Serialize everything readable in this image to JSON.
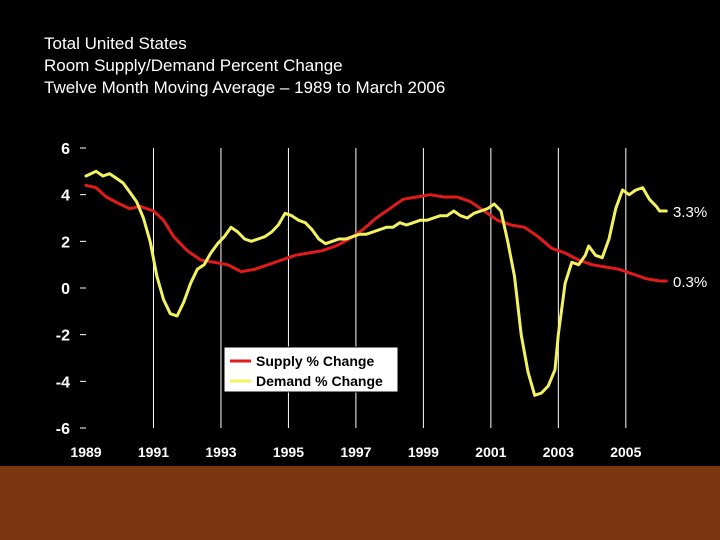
{
  "title_lines": [
    "Total United States",
    "Room Supply/Demand Percent Change",
    "Twelve Month Moving Average – 1989 to March 2006"
  ],
  "chart_data": {
    "type": "line",
    "x_range": [
      1989,
      2006.25
    ],
    "ylim": [
      -6,
      6
    ],
    "yticks": [
      6,
      4,
      2,
      0,
      -2,
      -4,
      -6
    ],
    "xtick_labels": [
      "1989",
      "1991",
      "1993",
      "1995",
      "1997",
      "1999",
      "2001",
      "2003",
      "2005"
    ],
    "xtick_values": [
      1989,
      1991,
      1993,
      1995,
      1997,
      1999,
      2001,
      2003,
      2005
    ],
    "legend": [
      "Supply % Change",
      "Demand % Change"
    ],
    "series": [
      {
        "name": "Supply % Change",
        "color": "#e11b1b",
        "end_label": "0.3%",
        "points": [
          [
            1989.0,
            4.4
          ],
          [
            1989.3,
            4.3
          ],
          [
            1989.6,
            3.9
          ],
          [
            1990.0,
            3.6
          ],
          [
            1990.3,
            3.4
          ],
          [
            1990.6,
            3.5
          ],
          [
            1991.0,
            3.3
          ],
          [
            1991.3,
            2.9
          ],
          [
            1991.6,
            2.2
          ],
          [
            1992.0,
            1.6
          ],
          [
            1992.4,
            1.2
          ],
          [
            1992.8,
            1.1
          ],
          [
            1993.2,
            1.0
          ],
          [
            1993.6,
            0.7
          ],
          [
            1994.0,
            0.8
          ],
          [
            1994.4,
            1.0
          ],
          [
            1994.8,
            1.2
          ],
          [
            1995.2,
            1.4
          ],
          [
            1995.6,
            1.5
          ],
          [
            1996.0,
            1.6
          ],
          [
            1996.4,
            1.8
          ],
          [
            1996.8,
            2.1
          ],
          [
            1997.2,
            2.5
          ],
          [
            1997.6,
            3.0
          ],
          [
            1998.0,
            3.4
          ],
          [
            1998.4,
            3.8
          ],
          [
            1998.8,
            3.9
          ],
          [
            1999.2,
            4.0
          ],
          [
            1999.6,
            3.9
          ],
          [
            2000.0,
            3.9
          ],
          [
            2000.4,
            3.7
          ],
          [
            2000.8,
            3.3
          ],
          [
            2001.2,
            2.9
          ],
          [
            2001.6,
            2.7
          ],
          [
            2002.0,
            2.6
          ],
          [
            2002.4,
            2.2
          ],
          [
            2002.8,
            1.7
          ],
          [
            2003.2,
            1.5
          ],
          [
            2003.6,
            1.2
          ],
          [
            2004.0,
            1.0
          ],
          [
            2004.4,
            0.9
          ],
          [
            2004.8,
            0.8
          ],
          [
            2005.2,
            0.6
          ],
          [
            2005.6,
            0.4
          ],
          [
            2006.0,
            0.3
          ],
          [
            2006.2,
            0.3
          ]
        ]
      },
      {
        "name": "Demand % Change",
        "color": "#f3f360",
        "end_label": "3.3%",
        "points": [
          [
            1989.0,
            4.8
          ],
          [
            1989.3,
            5.0
          ],
          [
            1989.5,
            4.8
          ],
          [
            1989.7,
            4.9
          ],
          [
            1989.9,
            4.7
          ],
          [
            1990.1,
            4.5
          ],
          [
            1990.3,
            4.1
          ],
          [
            1990.5,
            3.7
          ],
          [
            1990.7,
            3.0
          ],
          [
            1990.9,
            2.0
          ],
          [
            1991.1,
            0.5
          ],
          [
            1991.3,
            -0.5
          ],
          [
            1991.5,
            -1.1
          ],
          [
            1991.7,
            -1.2
          ],
          [
            1991.9,
            -0.6
          ],
          [
            1992.1,
            0.2
          ],
          [
            1992.3,
            0.8
          ],
          [
            1992.5,
            1.0
          ],
          [
            1992.7,
            1.5
          ],
          [
            1992.9,
            1.9
          ],
          [
            1993.1,
            2.2
          ],
          [
            1993.3,
            2.6
          ],
          [
            1993.5,
            2.4
          ],
          [
            1993.7,
            2.1
          ],
          [
            1993.9,
            2.0
          ],
          [
            1994.1,
            2.1
          ],
          [
            1994.3,
            2.2
          ],
          [
            1994.5,
            2.4
          ],
          [
            1994.7,
            2.7
          ],
          [
            1994.9,
            3.2
          ],
          [
            1995.1,
            3.1
          ],
          [
            1995.3,
            2.9
          ],
          [
            1995.5,
            2.8
          ],
          [
            1995.7,
            2.5
          ],
          [
            1995.9,
            2.1
          ],
          [
            1996.1,
            1.9
          ],
          [
            1996.3,
            2.0
          ],
          [
            1996.5,
            2.1
          ],
          [
            1996.7,
            2.1
          ],
          [
            1996.9,
            2.2
          ],
          [
            1997.1,
            2.3
          ],
          [
            1997.3,
            2.3
          ],
          [
            1997.5,
            2.4
          ],
          [
            1997.7,
            2.5
          ],
          [
            1997.9,
            2.6
          ],
          [
            1998.1,
            2.6
          ],
          [
            1998.3,
            2.8
          ],
          [
            1998.5,
            2.7
          ],
          [
            1998.7,
            2.8
          ],
          [
            1998.9,
            2.9
          ],
          [
            1999.1,
            2.9
          ],
          [
            1999.3,
            3.0
          ],
          [
            1999.5,
            3.1
          ],
          [
            1999.7,
            3.1
          ],
          [
            1999.9,
            3.3
          ],
          [
            2000.1,
            3.1
          ],
          [
            2000.3,
            3.0
          ],
          [
            2000.5,
            3.2
          ],
          [
            2000.7,
            3.3
          ],
          [
            2000.9,
            3.4
          ],
          [
            2001.1,
            3.6
          ],
          [
            2001.3,
            3.3
          ],
          [
            2001.5,
            2.0
          ],
          [
            2001.7,
            0.5
          ],
          [
            2001.9,
            -2.0
          ],
          [
            2002.1,
            -3.6
          ],
          [
            2002.3,
            -4.6
          ],
          [
            2002.5,
            -4.5
          ],
          [
            2002.7,
            -4.2
          ],
          [
            2002.9,
            -3.5
          ],
          [
            2003.0,
            -2.0
          ],
          [
            2003.2,
            0.2
          ],
          [
            2003.4,
            1.1
          ],
          [
            2003.6,
            1.0
          ],
          [
            2003.8,
            1.4
          ],
          [
            2003.9,
            1.8
          ],
          [
            2004.1,
            1.4
          ],
          [
            2004.3,
            1.3
          ],
          [
            2004.5,
            2.1
          ],
          [
            2004.7,
            3.4
          ],
          [
            2004.9,
            4.2
          ],
          [
            2005.1,
            4.0
          ],
          [
            2005.3,
            4.2
          ],
          [
            2005.5,
            4.3
          ],
          [
            2005.7,
            3.8
          ],
          [
            2005.9,
            3.5
          ],
          [
            2006.0,
            3.3
          ],
          [
            2006.2,
            3.3
          ]
        ]
      }
    ]
  }
}
